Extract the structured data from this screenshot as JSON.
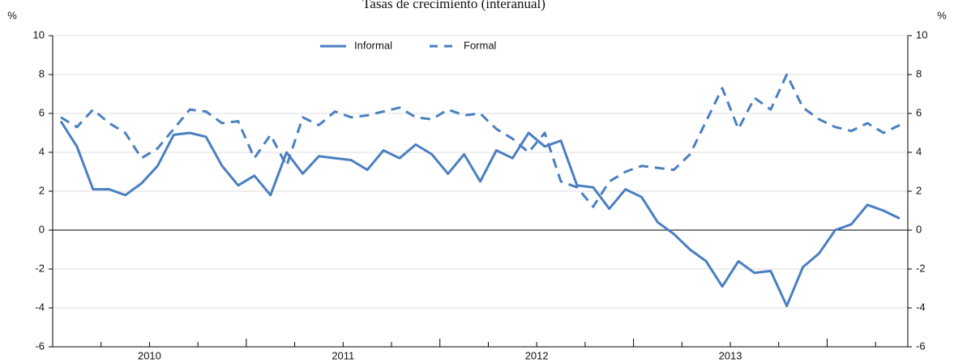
{
  "chart_data": {
    "type": "line",
    "title": "Tasas de crecimiento (interanual)",
    "y_label": "%",
    "y2_label": "%",
    "categories": [
      null,
      null,
      null,
      null,
      null,
      null,
      "2010",
      null,
      null,
      null,
      null,
      null,
      null,
      null,
      null,
      null,
      null,
      null,
      "2011",
      null,
      null,
      null,
      null,
      null,
      null,
      null,
      null,
      null,
      null,
      null,
      "2012",
      null,
      null,
      null,
      null,
      null,
      null,
      null,
      null,
      null,
      null,
      null,
      "2013",
      null,
      null,
      null,
      null,
      null,
      null,
      null,
      null,
      null,
      null
    ],
    "series": [
      {
        "name": "Informal",
        "color": "#4a7fc1",
        "dash": false,
        "values": [
          5.6,
          4.3,
          2.1,
          2.1,
          1.8,
          2.4,
          3.3,
          4.9,
          5.0,
          4.8,
          3.3,
          2.3,
          2.8,
          1.8,
          4.0,
          2.9,
          3.8,
          3.7,
          3.6,
          3.1,
          4.1,
          3.7,
          4.4,
          3.9,
          2.9,
          3.9,
          2.5,
          4.1,
          3.7,
          5.0,
          4.3,
          4.6,
          2.3,
          2.2,
          1.1,
          2.1,
          1.7,
          0.4,
          -0.2,
          -1.0,
          -1.6,
          -2.9,
          -1.6,
          -2.2,
          -2.1,
          -3.9,
          -1.9,
          -1.2,
          0.0,
          0.3,
          1.3,
          1.0,
          0.6
        ]
      },
      {
        "name": "Formal",
        "color": "#4a7fc1",
        "dash": true,
        "values": [
          5.8,
          5.3,
          6.2,
          5.5,
          5.0,
          3.7,
          4.2,
          5.2,
          6.2,
          6.1,
          5.5,
          5.6,
          3.7,
          4.9,
          3.3,
          5.8,
          5.4,
          6.1,
          5.8,
          5.9,
          6.1,
          6.3,
          5.8,
          5.7,
          6.2,
          5.9,
          6.0,
          5.2,
          4.7,
          4.0,
          5.0,
          2.5,
          2.2,
          1.2,
          2.5,
          3.0,
          3.3,
          3.2,
          3.1,
          3.9,
          5.6,
          7.3,
          5.2,
          6.8,
          6.2,
          8.0,
          6.3,
          5.7,
          5.3,
          5.1,
          5.5,
          5.0,
          5.4
        ]
      }
    ],
    "ylim": [
      -6,
      10
    ],
    "yticks": [
      -6,
      -4,
      -2,
      0,
      2,
      4,
      6,
      8,
      10
    ],
    "y2lim": [
      -6,
      10
    ],
    "y2ticks": [
      -6,
      -4,
      -2,
      0,
      2,
      4,
      6,
      8,
      10
    ],
    "grid": true,
    "legend": "top"
  }
}
